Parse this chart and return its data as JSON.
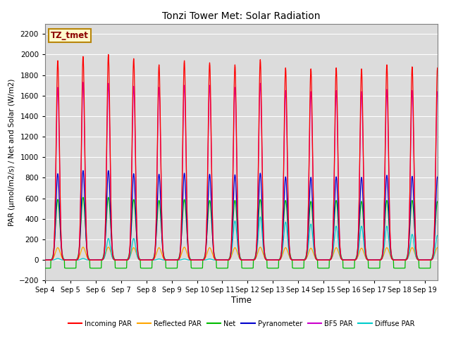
{
  "title": "Tonzi Tower Met: Solar Radiation",
  "ylabel": "PAR (μmol/m2/s) / Net and Solar (W/m2)",
  "xlabel": "Time",
  "ylim": [
    -200,
    2300
  ],
  "yticks": [
    -200,
    0,
    200,
    400,
    600,
    800,
    1000,
    1200,
    1400,
    1600,
    1800,
    2000,
    2200
  ],
  "x_tick_labels": [
    "Sep 4",
    "Sep 5",
    "Sep 6",
    "Sep 7",
    "Sep 8",
    "Sep 9",
    "Sep 10",
    "Sep 11",
    "Sep 12",
    "Sep 13",
    "Sep 14",
    "Sep 15",
    "Sep 16",
    "Sep 17",
    "Sep 18",
    "Sep 19"
  ],
  "num_days": 16,
  "annotation_text": "TZ_tmet",
  "annotation_color": "#8B0000",
  "annotation_bg": "#FFFACD",
  "annotation_border": "#B8860B",
  "series": {
    "incoming_par": {
      "color": "#FF0000",
      "label": "Incoming PAR"
    },
    "reflected_par": {
      "color": "#FFA500",
      "label": "Reflected PAR"
    },
    "net": {
      "color": "#00BB00",
      "label": "Net"
    },
    "pyranometer": {
      "color": "#0000CC",
      "label": "Pyranometer"
    },
    "bf5_par": {
      "color": "#CC00CC",
      "label": "BF5 PAR"
    },
    "diffuse_par": {
      "color": "#00CCCC",
      "label": "Diffuse PAR"
    }
  },
  "incoming_peaks": [
    1940,
    1980,
    2000,
    1960,
    1900,
    1940,
    1920,
    1900,
    1950,
    1870,
    1860,
    1870,
    1860,
    1900,
    1880,
    1870
  ],
  "reflected_peaks": [
    120,
    125,
    125,
    120,
    120,
    125,
    120,
    120,
    125,
    120,
    115,
    120,
    115,
    120,
    120,
    120
  ],
  "net_peaks": [
    590,
    610,
    610,
    590,
    580,
    590,
    580,
    580,
    590,
    580,
    570,
    580,
    570,
    580,
    580,
    570
  ],
  "pyranometer_peaks": [
    840,
    870,
    870,
    840,
    835,
    845,
    835,
    830,
    845,
    810,
    805,
    810,
    805,
    825,
    815,
    810
  ],
  "bf5_peaks": [
    1680,
    1730,
    1720,
    1690,
    1680,
    1700,
    1700,
    1680,
    1720,
    1650,
    1640,
    1650,
    1640,
    1660,
    1650,
    1640
  ],
  "diffuse_peaks": [
    15,
    15,
    210,
    210,
    10,
    10,
    10,
    380,
    420,
    370,
    350,
    330,
    330,
    330,
    250,
    240
  ],
  "net_night_val": -80,
  "background_color": "#DCDCDC",
  "figure_bg": "#FFFFFF"
}
